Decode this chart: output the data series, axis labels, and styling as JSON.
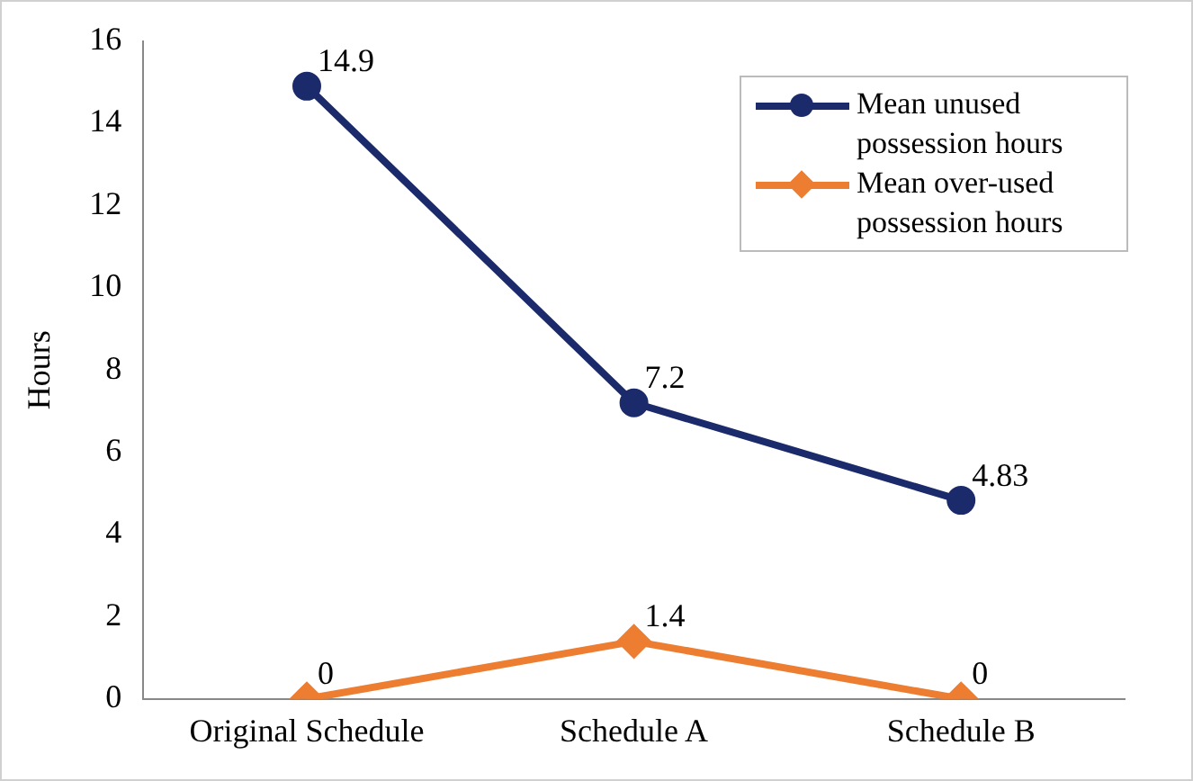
{
  "chart_data": {
    "type": "line",
    "ylabel": "Hours",
    "categories": [
      "Original Schedule",
      "Schedule A",
      "Schedule B"
    ],
    "series": [
      {
        "name": "Mean unused possession hours",
        "color": "#1b2a6b",
        "values": [
          14.9,
          7.2,
          4.83
        ],
        "marker": "circle"
      },
      {
        "name": "Mean over-used possession hours",
        "color": "#ed7d31",
        "values": [
          0,
          1.4,
          0
        ],
        "marker": "diamond"
      }
    ],
    "ylim": [
      0,
      16
    ],
    "yticks": [
      0,
      2,
      4,
      6,
      8,
      10,
      12,
      14,
      16
    ],
    "grid": false,
    "legend": "top right",
    "data_labels": true,
    "line_style": "solid"
  }
}
